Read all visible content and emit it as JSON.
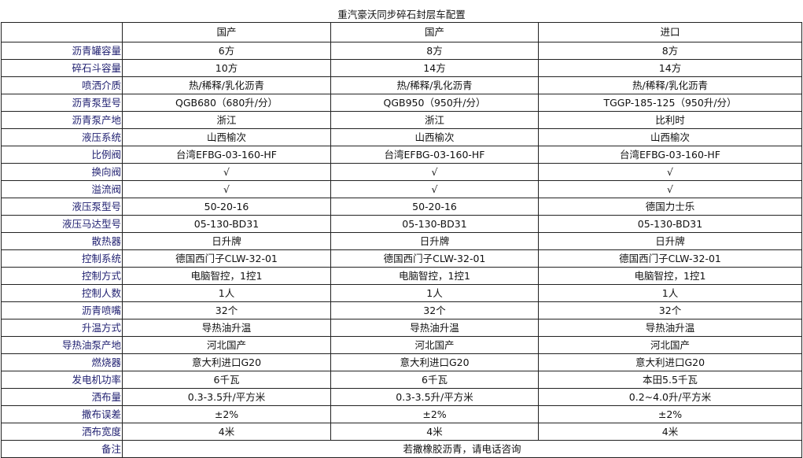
{
  "title": "重汽豪沃同步碎石封层车配置",
  "columns": [
    "",
    "国产",
    "国产",
    "进口"
  ],
  "rows": [
    {
      "label": "沥青罐容量",
      "values": [
        "6方",
        "8方",
        "8方"
      ]
    },
    {
      "label": "碎石斗容量",
      "values": [
        "10方",
        "14方",
        "14方"
      ]
    },
    {
      "label": "喷洒介质",
      "values": [
        "热/稀释/乳化沥青",
        "热/稀释/乳化沥青",
        "热/稀释/乳化沥青"
      ]
    },
    {
      "label": "沥青泵型号",
      "values": [
        "QGB680（680升/分）",
        "QGB950（950升/分）",
        "TGGP-185-125（950升/分）"
      ]
    },
    {
      "label": "沥青泵产地",
      "values": [
        "浙江",
        "浙江",
        "比利时"
      ]
    },
    {
      "label": "液压系统",
      "values": [
        "山西榆次",
        "山西榆次",
        "山西榆次"
      ]
    },
    {
      "label": "比例阀",
      "values": [
        "台湾EFBG-03-160-HF",
        "台湾EFBG-03-160-HF",
        "台湾EFBG-03-160-HF"
      ]
    },
    {
      "label": "换向阀",
      "values": [
        "√",
        "√",
        "√"
      ]
    },
    {
      "label": "溢流阀",
      "values": [
        "√",
        "√",
        "√"
      ]
    },
    {
      "label": "液压泵型号",
      "values": [
        "50-20-16",
        "50-20-16",
        "德国力士乐"
      ]
    },
    {
      "label": "液压马达型号",
      "values": [
        "05-130-BD31",
        "05-130-BD31",
        "05-130-BD31"
      ]
    },
    {
      "label": "散热器",
      "values": [
        "日升牌",
        "日升牌",
        "日升牌"
      ]
    },
    {
      "label": "控制系统",
      "values": [
        "德国西门子CLW-32-01",
        "德国西门子CLW-32-01",
        "德国西门子CLW-32-01"
      ]
    },
    {
      "label": "控制方式",
      "values": [
        "电脑智控，1控1",
        "电脑智控，1控1",
        "电脑智控，1控1"
      ]
    },
    {
      "label": "控制人数",
      "values": [
        "1人",
        "1人",
        "1人"
      ]
    },
    {
      "label": "沥青喷嘴",
      "values": [
        "32个",
        "32个",
        "32个"
      ]
    },
    {
      "label": "升温方式",
      "values": [
        "导热油升温",
        "导热油升温",
        "导热油升温"
      ]
    },
    {
      "label": "导热油泵产地",
      "values": [
        "河北国产",
        "河北国产",
        "河北国产"
      ]
    },
    {
      "label": "燃烧器",
      "values": [
        "意大利进口G20",
        "意大利进口G20",
        "意大利进口G20"
      ]
    },
    {
      "label": "发电机功率",
      "values": [
        "6千瓦",
        "6千瓦",
        "本田5.5千瓦"
      ]
    },
    {
      "label": "洒布量",
      "values": [
        "0.3-3.5升/平方米",
        "0.3-3.5升/平方米",
        "0.2~4.0升/平方米"
      ]
    },
    {
      "label": "撒布误差",
      "values": [
        "±2%",
        "±2%",
        "±2%"
      ]
    },
    {
      "label": "洒布宽度",
      "values": [
        "4米",
        "4米",
        "4米"
      ]
    }
  ],
  "remark": {
    "label": "备注",
    "value": "若撒橡胶沥青，请电话咨询"
  },
  "colors": {
    "label_text": "#1f1f70",
    "border": "#222222"
  }
}
